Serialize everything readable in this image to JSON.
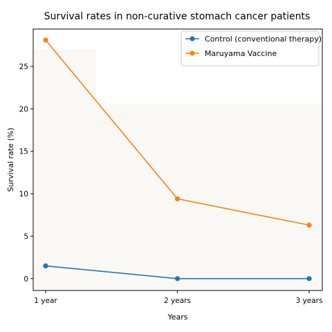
{
  "chart_data": {
    "type": "line",
    "title": "Survival rates in non-curative stomach cancer patients",
    "xlabel": "Years",
    "ylabel": "Survival rate (%)",
    "categories": [
      "1 year",
      "2 years",
      "3 years"
    ],
    "ylim": [
      -1.4,
      29.4
    ],
    "yticks": [
      0,
      5,
      10,
      15,
      20,
      25
    ],
    "grid": false,
    "legend_position": "top-right",
    "series": [
      {
        "name": "Control (conventional therapy)",
        "values": [
          1.5,
          0.0,
          0.0
        ],
        "color": "#1f77b4"
      },
      {
        "name": "Maruyama Vaccine",
        "values": [
          28.1,
          9.4,
          6.3
        ],
        "color": "#ff7f0e"
      }
    ]
  }
}
